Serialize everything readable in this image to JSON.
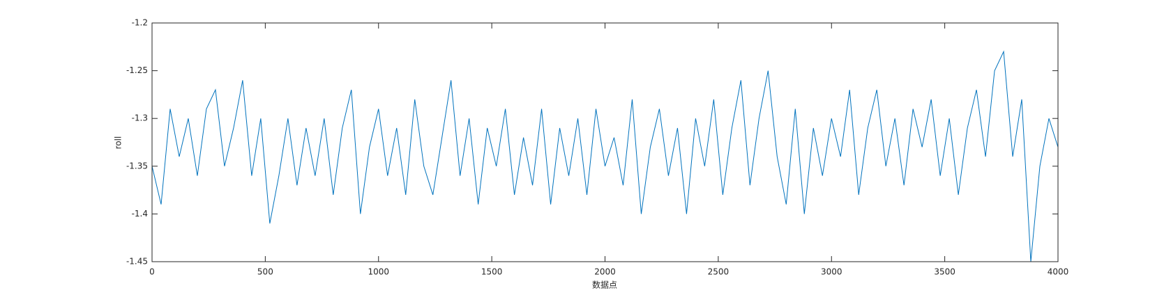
{
  "chart_data": {
    "type": "line",
    "xlabel": "数据点",
    "ylabel": "roll",
    "x": [
      0,
      40,
      80,
      120,
      160,
      200,
      240,
      280,
      320,
      360,
      400,
      440,
      480,
      520,
      560,
      600,
      640,
      680,
      720,
      760,
      800,
      840,
      880,
      920,
      960,
      1000,
      1040,
      1080,
      1120,
      1160,
      1200,
      1240,
      1280,
      1320,
      1360,
      1400,
      1440,
      1480,
      1520,
      1560,
      1600,
      1640,
      1680,
      1720,
      1760,
      1800,
      1840,
      1880,
      1920,
      1960,
      2000,
      2040,
      2080,
      2120,
      2160,
      2200,
      2240,
      2280,
      2320,
      2360,
      2400,
      2440,
      2480,
      2520,
      2560,
      2600,
      2640,
      2680,
      2720,
      2760,
      2800,
      2840,
      2880,
      2920,
      2960,
      3000,
      3040,
      3080,
      3120,
      3160,
      3200,
      3240,
      3280,
      3320,
      3360,
      3400,
      3440,
      3480,
      3520,
      3560,
      3600,
      3640,
      3680,
      3720,
      3760,
      3800,
      3840,
      3880,
      3920,
      3960,
      4000
    ],
    "series": [
      {
        "name": "roll",
        "color": "#0072bd",
        "values": [
          -1.35,
          -1.39,
          -1.29,
          -1.34,
          -1.3,
          -1.36,
          -1.29,
          -1.27,
          -1.35,
          -1.31,
          -1.26,
          -1.36,
          -1.3,
          -1.41,
          -1.36,
          -1.3,
          -1.37,
          -1.31,
          -1.36,
          -1.3,
          -1.38,
          -1.31,
          -1.27,
          -1.4,
          -1.33,
          -1.29,
          -1.36,
          -1.31,
          -1.38,
          -1.28,
          -1.35,
          -1.38,
          -1.32,
          -1.26,
          -1.36,
          -1.3,
          -1.39,
          -1.31,
          -1.35,
          -1.29,
          -1.38,
          -1.32,
          -1.37,
          -1.29,
          -1.39,
          -1.31,
          -1.36,
          -1.3,
          -1.38,
          -1.29,
          -1.35,
          -1.32,
          -1.37,
          -1.28,
          -1.4,
          -1.33,
          -1.29,
          -1.36,
          -1.31,
          -1.4,
          -1.3,
          -1.35,
          -1.28,
          -1.38,
          -1.31,
          -1.26,
          -1.37,
          -1.3,
          -1.25,
          -1.34,
          -1.39,
          -1.29,
          -1.4,
          -1.31,
          -1.36,
          -1.3,
          -1.34,
          -1.27,
          -1.38,
          -1.31,
          -1.27,
          -1.35,
          -1.3,
          -1.37,
          -1.29,
          -1.33,
          -1.28,
          -1.36,
          -1.3,
          -1.38,
          -1.31,
          -1.27,
          -1.34,
          -1.25,
          -1.23,
          -1.34,
          -1.28,
          -1.45,
          -1.35,
          -1.3,
          -1.33
        ]
      }
    ],
    "xlim": [
      0,
      4000
    ],
    "xticks": [
      0,
      500,
      1000,
      1500,
      2000,
      2500,
      3000,
      3500,
      4000
    ],
    "ylim": [
      -1.45,
      -1.2
    ],
    "yticks": [
      -1.45,
      -1.4,
      -1.35,
      -1.3,
      -1.25,
      -1.2
    ],
    "grid": false
  }
}
